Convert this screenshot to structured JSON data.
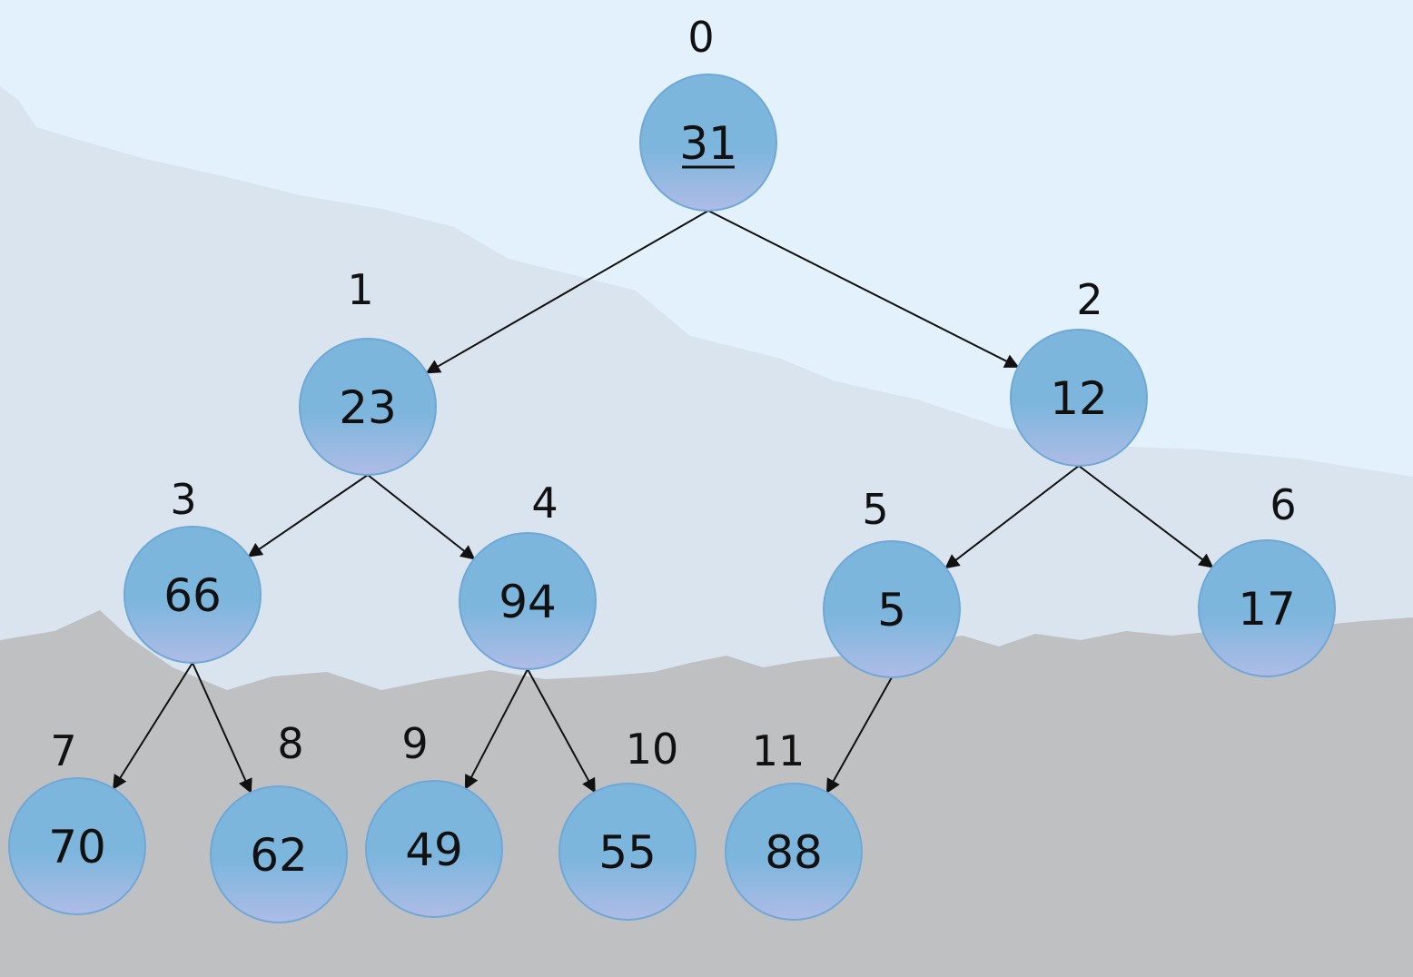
{
  "colors": {
    "sky": "#e2f1fc",
    "far_hills": "#d9e4ee",
    "foreground_hills": "#bfc0c2",
    "node_top": "#7db6dd",
    "node_bottom": "#aebce6",
    "node_border": "#6fa8d6",
    "edge": "#111111",
    "text": "#111111"
  },
  "tree": {
    "root_underlined": true,
    "nodes": [
      {
        "index": "0",
        "value": "31"
      },
      {
        "index": "1",
        "value": "23"
      },
      {
        "index": "2",
        "value": "12"
      },
      {
        "index": "3",
        "value": "66"
      },
      {
        "index": "4",
        "value": "94"
      },
      {
        "index": "5",
        "value": "5"
      },
      {
        "index": "6",
        "value": "17"
      },
      {
        "index": "7",
        "value": "70"
      },
      {
        "index": "8",
        "value": "62"
      },
      {
        "index": "9",
        "value": "49"
      },
      {
        "index": "10",
        "value": "55"
      },
      {
        "index": "11",
        "value": "88"
      }
    ],
    "edges": [
      [
        0,
        1
      ],
      [
        0,
        2
      ],
      [
        1,
        3
      ],
      [
        1,
        4
      ],
      [
        2,
        5
      ],
      [
        2,
        6
      ],
      [
        3,
        7
      ],
      [
        3,
        8
      ],
      [
        4,
        9
      ],
      [
        4,
        10
      ],
      [
        5,
        11
      ]
    ]
  }
}
